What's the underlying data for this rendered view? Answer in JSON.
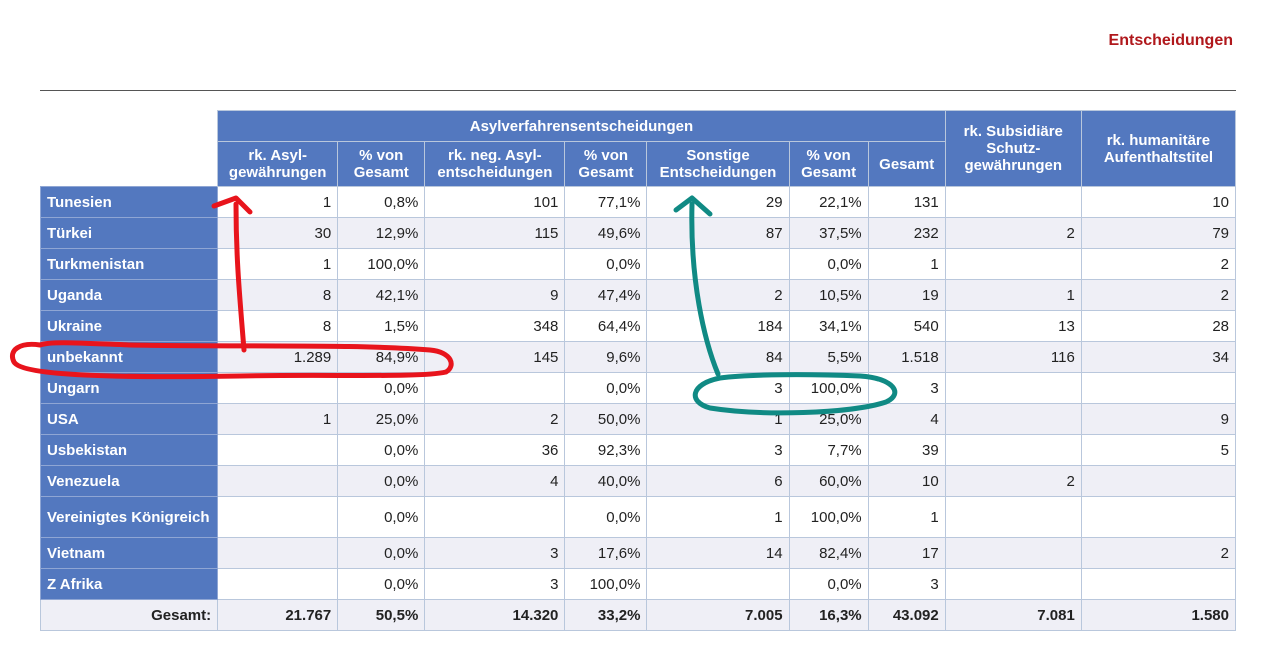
{
  "title": "Entscheidungen",
  "colors": {
    "header_bg": "#5378bf",
    "title": "#b0181c",
    "red_annotation": "#e8141c",
    "teal_annotation": "#108a84"
  },
  "header": {
    "group": "Asylverfahrensentscheidungen",
    "cols": [
      "rk. Asyl-gewährungen",
      "% von Gesamt",
      "rk. neg. Asyl-entscheidungen",
      "% von Gesamt",
      "Sonstige Entscheidungen",
      "% von Gesamt",
      "Gesamt"
    ],
    "subsidiary": "rk. Subsidiäre Schutz-gewährungen",
    "humanitarian": "rk. humanitäre Aufenthaltstitel"
  },
  "rows": [
    {
      "country": "Tunesien",
      "v": [
        "1",
        "0,8%",
        "101",
        "77,1%",
        "29",
        "22,1%",
        "131",
        "",
        "10"
      ]
    },
    {
      "country": "Türkei",
      "v": [
        "30",
        "12,9%",
        "115",
        "49,6%",
        "87",
        "37,5%",
        "232",
        "2",
        "79"
      ]
    },
    {
      "country": "Turkmenistan",
      "v": [
        "1",
        "100,0%",
        "",
        "0,0%",
        "",
        "0,0%",
        "1",
        "",
        "2"
      ]
    },
    {
      "country": "Uganda",
      "v": [
        "8",
        "42,1%",
        "9",
        "47,4%",
        "2",
        "10,5%",
        "19",
        "1",
        "2"
      ]
    },
    {
      "country": "Ukraine",
      "v": [
        "8",
        "1,5%",
        "348",
        "64,4%",
        "184",
        "34,1%",
        "540",
        "13",
        "28"
      ]
    },
    {
      "country": "unbekannt",
      "v": [
        "1.289",
        "84,9%",
        "145",
        "9,6%",
        "84",
        "5,5%",
        "1.518",
        "116",
        "34"
      ]
    },
    {
      "country": "Ungarn",
      "v": [
        "",
        "0,0%",
        "",
        "0,0%",
        "3",
        "100,0%",
        "3",
        "",
        ""
      ]
    },
    {
      "country": "USA",
      "v": [
        "1",
        "25,0%",
        "2",
        "50,0%",
        "1",
        "25,0%",
        "4",
        "",
        "9"
      ]
    },
    {
      "country": "Usbekistan",
      "v": [
        "",
        "0,0%",
        "36",
        "92,3%",
        "3",
        "7,7%",
        "39",
        "",
        "5"
      ]
    },
    {
      "country": "Venezuela",
      "v": [
        "",
        "0,0%",
        "4",
        "40,0%",
        "6",
        "60,0%",
        "10",
        "2",
        ""
      ]
    },
    {
      "country": "Vereinigtes Königreich",
      "v": [
        "",
        "0,0%",
        "",
        "0,0%",
        "1",
        "100,0%",
        "1",
        "",
        ""
      ]
    },
    {
      "country": "Vietnam",
      "v": [
        "",
        "0,0%",
        "3",
        "17,6%",
        "14",
        "82,4%",
        "17",
        "",
        "2"
      ]
    },
    {
      "country": "Z Afrika",
      "v": [
        "",
        "0,0%",
        "3",
        "100,0%",
        "",
        "0,0%",
        "3",
        "",
        ""
      ]
    }
  ],
  "total": {
    "label": "Gesamt:",
    "v": [
      "21.767",
      "50,5%",
      "14.320",
      "33,2%",
      "7.005",
      "16,3%",
      "43.092",
      "7.081",
      "1.580"
    ]
  }
}
